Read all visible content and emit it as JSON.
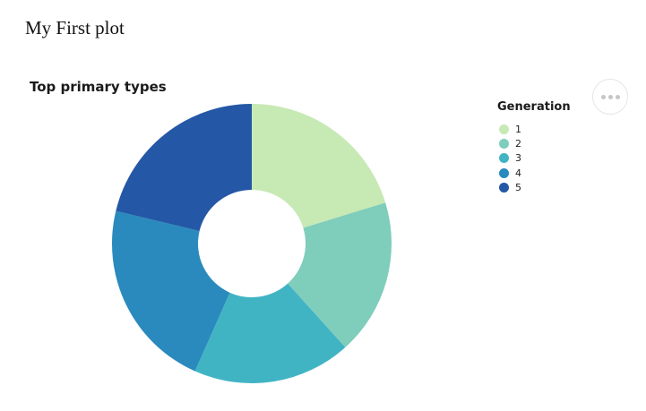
{
  "page": {
    "title": "My First plot"
  },
  "chart": {
    "title": "Top primary types",
    "actions_button_icon": "ellipsis-icon"
  },
  "legend": {
    "title": "Generation"
  },
  "chart_data": {
    "type": "pie",
    "subtype": "donut",
    "title": "Top primary types",
    "legend_title": "Generation",
    "legend_position": "right",
    "categories": [
      "1",
      "2",
      "3",
      "4",
      "5"
    ],
    "values_pct": [
      20.3,
      18.1,
      18.3,
      22.1,
      21.2
    ],
    "angles_deg": [
      [
        0,
        73
      ],
      [
        73,
        138
      ],
      [
        138,
        204
      ],
      [
        204,
        283.5
      ],
      [
        283.5,
        360
      ]
    ],
    "colors": [
      "#c7e9b4",
      "#7fcdbb",
      "#41b4c4",
      "#2a8abd",
      "#2457a6"
    ],
    "inner_radius_ratio": 0.385,
    "start_angle": "12-oclock",
    "direction": "clockwise"
  }
}
